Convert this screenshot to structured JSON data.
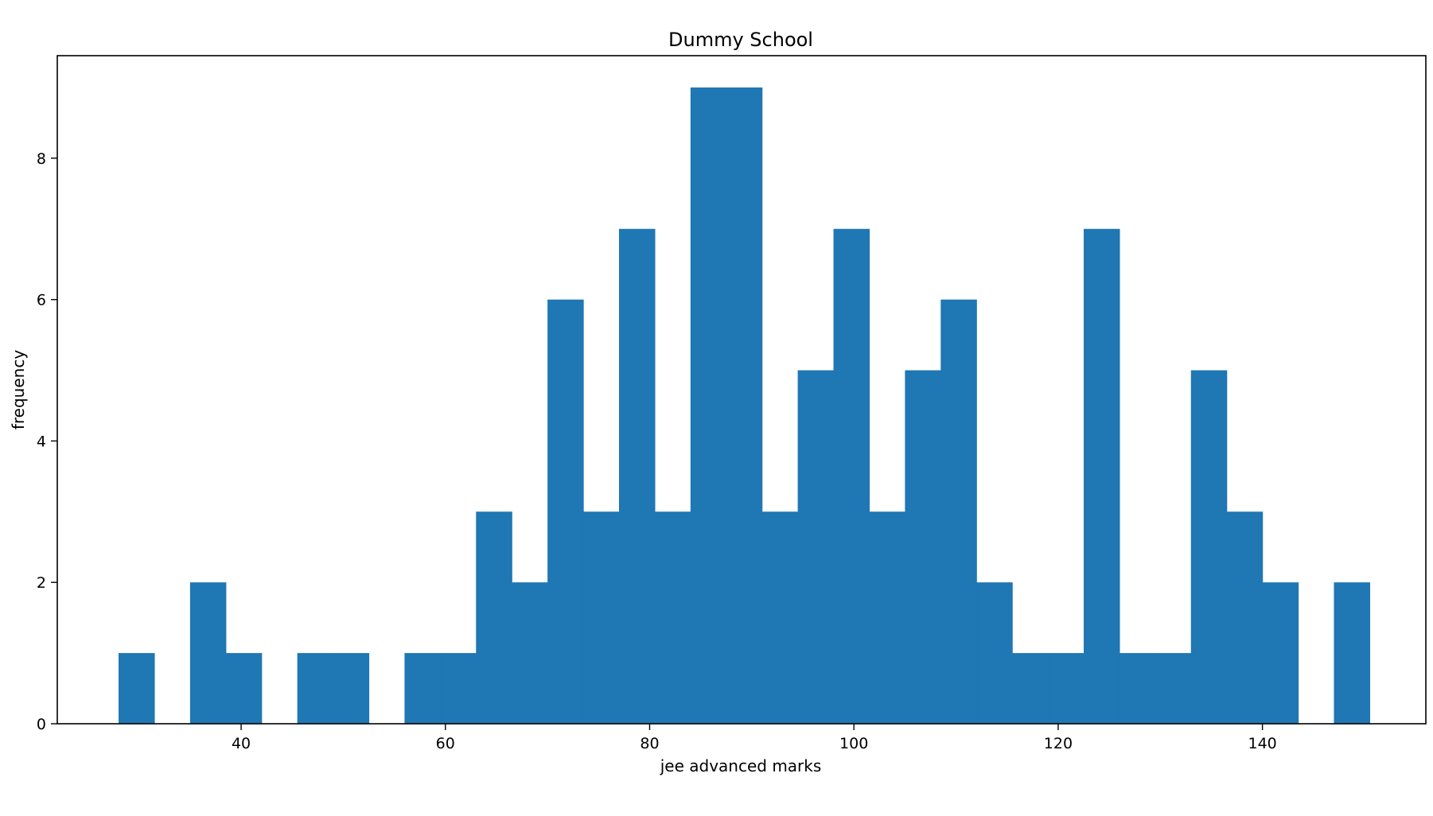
{
  "chart_data": {
    "type": "bar",
    "subtype": "histogram",
    "title": "Dummy School",
    "xlabel": "jee advanced marks",
    "ylabel": "frequency",
    "xlim": [
      22,
      156
    ],
    "ylim": [
      0,
      9.45
    ],
    "x_ticks": [
      40,
      60,
      80,
      100,
      120,
      140
    ],
    "y_ticks": [
      0,
      2,
      4,
      6,
      8
    ],
    "bar_color": "#1f77b4",
    "grid": false,
    "bins": [
      {
        "x0": 28.0,
        "x1": 31.5,
        "value": 1
      },
      {
        "x0": 31.5,
        "x1": 35.0,
        "value": 0
      },
      {
        "x0": 35.0,
        "x1": 38.5,
        "value": 2
      },
      {
        "x0": 38.5,
        "x1": 42.0,
        "value": 1
      },
      {
        "x0": 42.0,
        "x1": 45.5,
        "value": 0
      },
      {
        "x0": 45.5,
        "x1": 49.0,
        "value": 1
      },
      {
        "x0": 49.0,
        "x1": 52.5,
        "value": 1
      },
      {
        "x0": 52.5,
        "x1": 56.0,
        "value": 0
      },
      {
        "x0": 56.0,
        "x1": 59.5,
        "value": 1
      },
      {
        "x0": 59.5,
        "x1": 63.0,
        "value": 1
      },
      {
        "x0": 63.0,
        "x1": 66.5,
        "value": 3
      },
      {
        "x0": 66.5,
        "x1": 70.0,
        "value": 2
      },
      {
        "x0": 70.0,
        "x1": 73.5,
        "value": 6
      },
      {
        "x0": 73.5,
        "x1": 77.0,
        "value": 3
      },
      {
        "x0": 77.0,
        "x1": 80.5,
        "value": 7
      },
      {
        "x0": 80.5,
        "x1": 84.0,
        "value": 3
      },
      {
        "x0": 84.0,
        "x1": 87.5,
        "value": 9
      },
      {
        "x0": 87.5,
        "x1": 91.0,
        "value": 9
      },
      {
        "x0": 91.0,
        "x1": 94.5,
        "value": 3
      },
      {
        "x0": 94.5,
        "x1": 98.0,
        "value": 5
      },
      {
        "x0": 98.0,
        "x1": 101.5,
        "value": 7
      },
      {
        "x0": 101.5,
        "x1": 105.0,
        "value": 3
      },
      {
        "x0": 105.0,
        "x1": 108.5,
        "value": 5
      },
      {
        "x0": 108.5,
        "x1": 112.0,
        "value": 6
      },
      {
        "x0": 112.0,
        "x1": 115.5,
        "value": 2
      },
      {
        "x0": 115.5,
        "x1": 119.0,
        "value": 1
      },
      {
        "x0": 119.0,
        "x1": 122.5,
        "value": 1
      },
      {
        "x0": 122.5,
        "x1": 126.0,
        "value": 7
      },
      {
        "x0": 126.0,
        "x1": 129.5,
        "value": 1
      },
      {
        "x0": 129.5,
        "x1": 133.0,
        "value": 1
      },
      {
        "x0": 133.0,
        "x1": 136.5,
        "value": 5
      },
      {
        "x0": 136.5,
        "x1": 140.0,
        "value": 3
      },
      {
        "x0": 140.0,
        "x1": 143.5,
        "value": 2
      },
      {
        "x0": 143.5,
        "x1": 147.0,
        "value": 0
      },
      {
        "x0": 147.0,
        "x1": 150.5,
        "value": 2
      }
    ]
  }
}
